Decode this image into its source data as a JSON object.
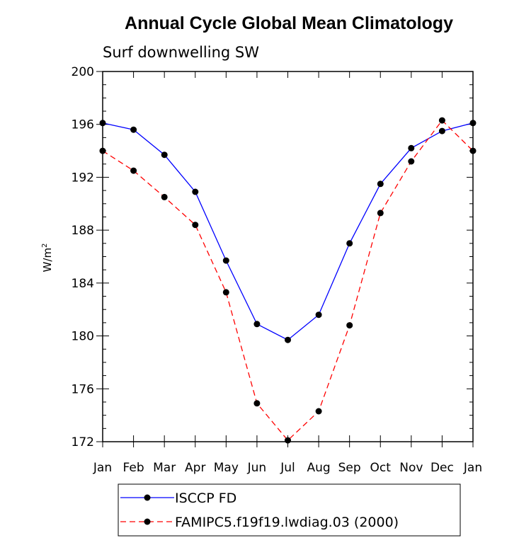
{
  "chart_data": {
    "type": "line",
    "title": "Annual Cycle Global Mean Climatology",
    "subtitle": "Surf downwelling SW",
    "ylabel": "W/m",
    "ylabel_superscript": "2",
    "xlabel": "",
    "categories": [
      "Jan",
      "Feb",
      "Mar",
      "Apr",
      "May",
      "Jun",
      "Jul",
      "Aug",
      "Sep",
      "Oct",
      "Nov",
      "Dec",
      "Jan"
    ],
    "ylim": [
      172,
      200
    ],
    "yticks": [
      "172",
      "176",
      "180",
      "184",
      "188",
      "192",
      "196",
      "200"
    ],
    "grid": false,
    "legend_position": "bottom",
    "series": [
      {
        "name": "ISCCP FD",
        "color": "#0000ff",
        "dash": "solid",
        "values": [
          196.1,
          195.6,
          193.7,
          190.9,
          185.7,
          180.9,
          179.7,
          181.6,
          187.0,
          191.5,
          194.2,
          195.5,
          196.1
        ]
      },
      {
        "name": "FAMIPC5.f19f19.lwdiag.03 (2000)",
        "color": "#ff0000",
        "dash": "dashed",
        "values": [
          194.0,
          192.5,
          190.5,
          188.4,
          183.3,
          174.9,
          172.1,
          174.3,
          180.8,
          189.3,
          193.2,
          196.3,
          194.0
        ]
      }
    ]
  }
}
